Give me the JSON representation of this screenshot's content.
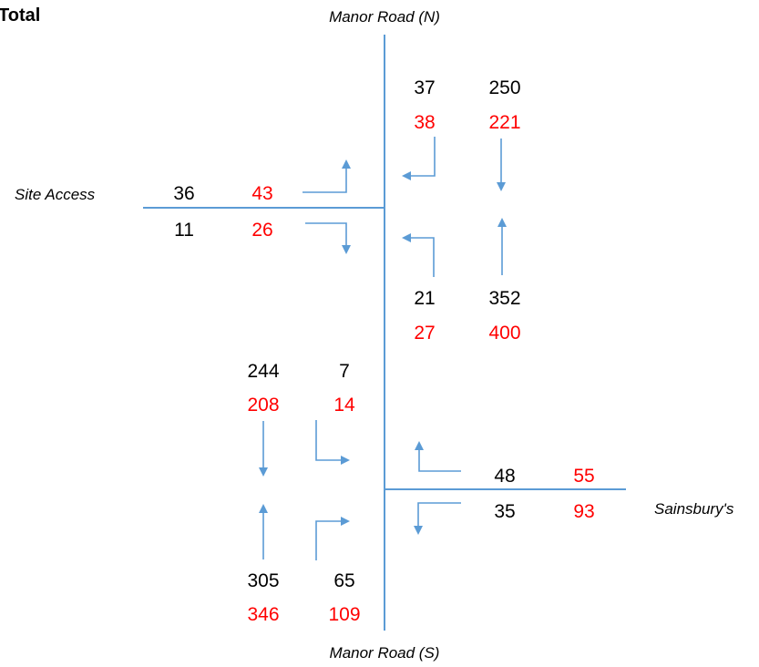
{
  "title": "Total",
  "colors": {
    "line": "#5b9bd5",
    "black": "#000000",
    "red": "#ff0000"
  },
  "roads": {
    "north": "Manor Road (N)",
    "south": "Manor Road (S)",
    "west": "Site Access",
    "east": "Sainsbury's"
  },
  "flows": {
    "site_access_in": {
      "a": "36",
      "b": "43"
    },
    "site_access_out": {
      "a": "11",
      "b": "26"
    },
    "north_left_turn": {
      "a": "37",
      "b": "38"
    },
    "north_straight": {
      "a": "250",
      "b": "221"
    },
    "north_from_site": {
      "a": "21",
      "b": "27"
    },
    "north_straight_up": {
      "a": "352",
      "b": "400"
    },
    "south_down": {
      "a": "244",
      "b": "208"
    },
    "south_right_turn": {
      "a": "7",
      "b": "14"
    },
    "south_up": {
      "a": "305",
      "b": "346"
    },
    "south_to_sainsburys": {
      "a": "65",
      "b": "109"
    },
    "sainsburys_in": {
      "a": "48",
      "b": "55"
    },
    "sainsburys_out": {
      "a": "35",
      "b": "93"
    }
  }
}
